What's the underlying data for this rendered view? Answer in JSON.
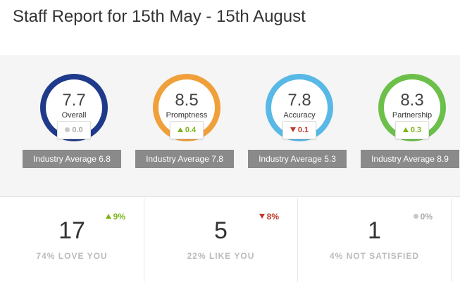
{
  "header": {
    "title": "Staff Report for 15th May - 15th August"
  },
  "scores": [
    {
      "value": "7.7",
      "label": "Overall",
      "delta": "0.0",
      "trend": "neutral",
      "ring_color": "#1f3a8a",
      "industry": "Industry Average 6.8"
    },
    {
      "value": "8.5",
      "label": "Promptness",
      "delta": "0.4",
      "trend": "up",
      "ring_color": "#f0a03a",
      "industry": "Industry Average 7.8"
    },
    {
      "value": "7.8",
      "label": "Accuracy",
      "delta": "0.1",
      "trend": "down",
      "ring_color": "#58b8e6",
      "industry": "Industry Average 5.3"
    },
    {
      "value": "8.3",
      "label": "Partnership",
      "delta": "0.3",
      "trend": "up",
      "ring_color": "#6cc04a",
      "industry": "Industry Average 8.9"
    }
  ],
  "stats": [
    {
      "number": "17",
      "label": "74% LOVE YOU",
      "delta": "9%",
      "trend": "up"
    },
    {
      "number": "5",
      "label": "22% LIKE YOU",
      "delta": "8%",
      "trend": "down"
    },
    {
      "number": "1",
      "label": "4% NOT SATISFIED",
      "delta": "0%",
      "trend": "neutral"
    }
  ],
  "colors": {
    "up": "#7cb518",
    "down": "#c0392b",
    "neutral": "#aaaaaa"
  }
}
